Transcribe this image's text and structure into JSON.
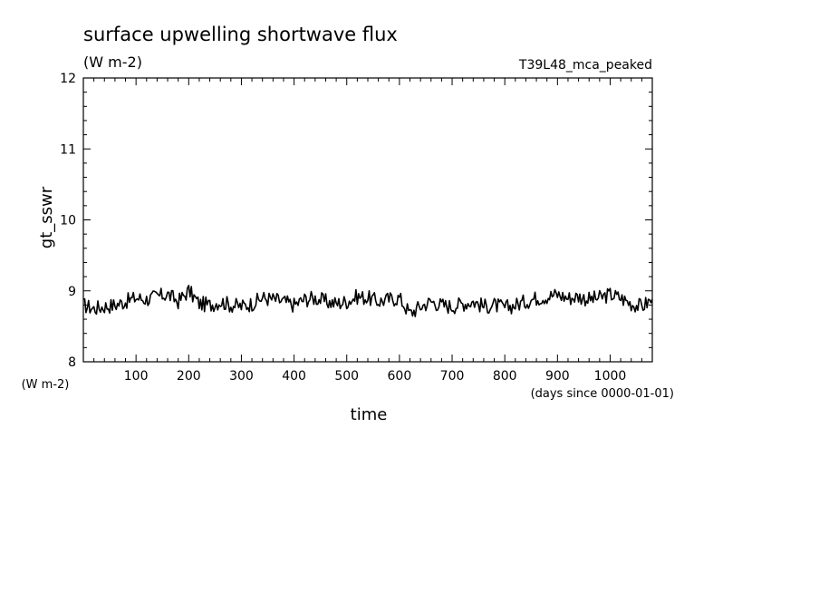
{
  "chart_data": {
    "type": "line",
    "title": "surface upwelling shortwave flux",
    "subtitle": "(W m-2)",
    "run_label": "T39L48_mca_peaked",
    "xlabel": "time",
    "x_units": "(days since 0000-01-01)",
    "ylabel": "gt_sswr",
    "y_units": "(W m-2)",
    "xlim": [
      0,
      1080
    ],
    "ylim": [
      8,
      12
    ],
    "x_ticks": [
      100,
      200,
      300,
      400,
      500,
      600,
      700,
      800,
      900,
      1000
    ],
    "y_ticks": [
      8,
      9,
      10,
      11,
      12
    ],
    "grid": false,
    "series": [
      {
        "color": "#000000",
        "x": [
          0,
          20,
          40,
          60,
          80,
          100,
          120,
          140,
          160,
          180,
          200,
          220,
          240,
          260,
          280,
          300,
          320,
          340,
          360,
          380,
          400,
          420,
          440,
          460,
          480,
          500,
          520,
          540,
          560,
          580,
          600,
          620,
          640,
          660,
          680,
          700,
          720,
          740,
          760,
          780,
          800,
          820,
          840,
          860,
          880,
          900,
          920,
          940,
          960,
          980,
          1000,
          1020,
          1040,
          1060,
          1080
        ],
        "y": [
          8.8,
          8.75,
          8.78,
          8.8,
          8.85,
          8.9,
          8.88,
          8.92,
          8.95,
          8.85,
          9.0,
          8.82,
          8.8,
          8.85,
          8.8,
          8.78,
          8.82,
          8.9,
          8.88,
          8.85,
          8.8,
          8.88,
          8.9,
          8.85,
          8.82,
          8.85,
          8.92,
          8.9,
          8.85,
          8.88,
          8.9,
          8.68,
          8.78,
          8.85,
          8.8,
          8.78,
          8.82,
          8.85,
          8.78,
          8.8,
          8.76,
          8.8,
          8.85,
          8.9,
          8.92,
          8.95,
          8.9,
          8.92,
          8.88,
          8.9,
          8.95,
          8.9,
          8.82,
          8.78,
          8.88
        ]
      }
    ]
  }
}
